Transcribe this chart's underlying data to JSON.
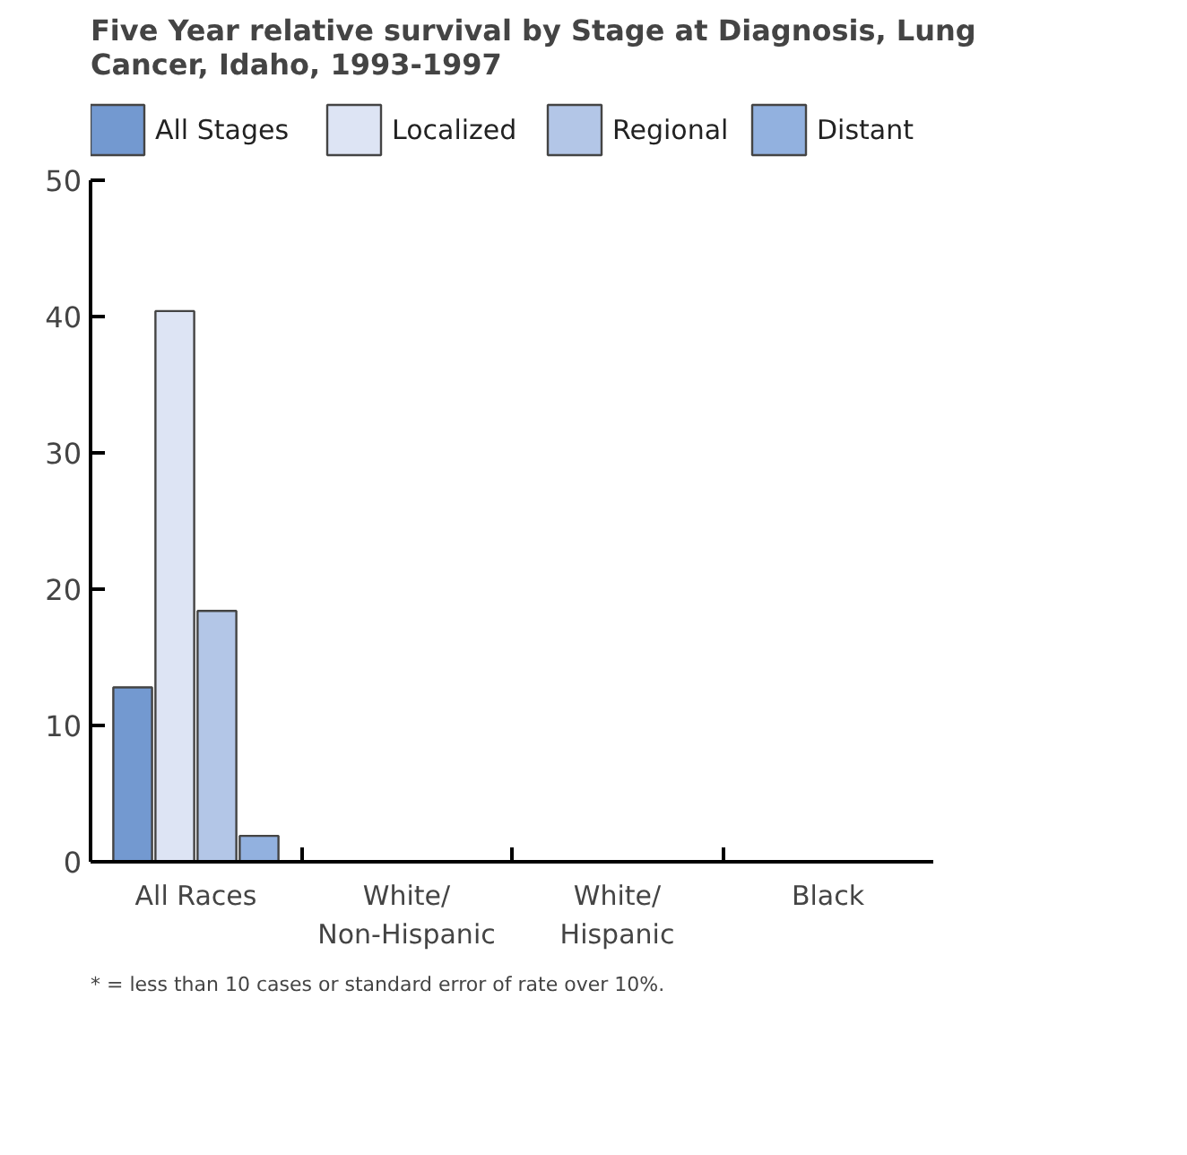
{
  "chart_data": {
    "type": "bar",
    "title": "Five Year relative survival by Stage at Diagnosis, Lung Cancer, Idaho, 1993-1997",
    "categories": [
      "All Races",
      "White/\nNon-Hispanic",
      "White/\nHispanic",
      "Black"
    ],
    "series": [
      {
        "name": "All Stages",
        "color": "#7399d0",
        "values": [
          12.8,
          null,
          null,
          null
        ]
      },
      {
        "name": "Localized",
        "color": "#dde4f4",
        "values": [
          40.4,
          null,
          null,
          null
        ]
      },
      {
        "name": "Regional",
        "color": "#b3c6e7",
        "values": [
          18.4,
          null,
          null,
          null
        ]
      },
      {
        "name": "Distant",
        "color": "#92b1df",
        "values": [
          1.9,
          null,
          null,
          null
        ]
      }
    ],
    "ylim": [
      0,
      50
    ],
    "yticks": [
      0,
      10,
      20,
      30,
      40,
      50
    ],
    "grid": false,
    "legend": "top",
    "annotations": [
      "* = less than 10 cases or standard error of rate over 10%."
    ]
  }
}
